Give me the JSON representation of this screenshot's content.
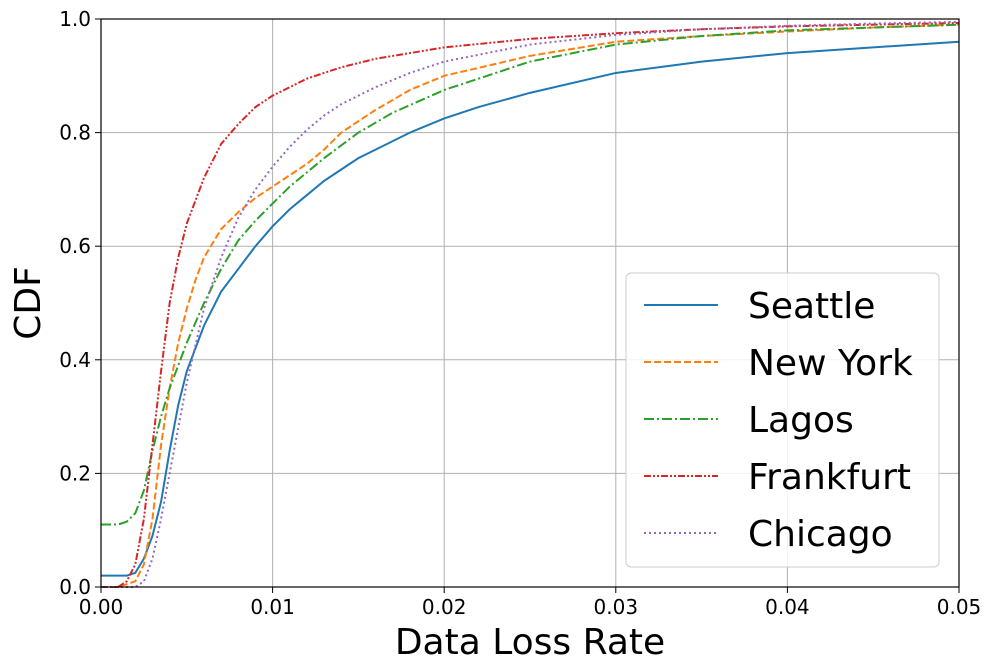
{
  "chart_data": {
    "type": "line",
    "title": "",
    "xlabel": "Data Loss Rate",
    "ylabel": "CDF",
    "xlim": [
      0.0,
      0.05
    ],
    "ylim": [
      0.0,
      1.0
    ],
    "grid": true,
    "legend_position": "lower-right",
    "x_ticks": [
      "0.00",
      "0.01",
      "0.02",
      "0.03",
      "0.04",
      "0.05"
    ],
    "x_tick_values": [
      0.0,
      0.01,
      0.02,
      0.03,
      0.04,
      0.05
    ],
    "y_ticks": [
      "0.0",
      "0.2",
      "0.4",
      "0.6",
      "0.8",
      "1.0"
    ],
    "y_tick_values": [
      0.0,
      0.2,
      0.4,
      0.6,
      0.8,
      1.0
    ],
    "series": [
      {
        "name": "Seattle",
        "color": "#1f77b4",
        "dash": "solid",
        "x": [
          0.0,
          0.0005,
          0.0015,
          0.002,
          0.0025,
          0.003,
          0.0035,
          0.004,
          0.0045,
          0.005,
          0.006,
          0.007,
          0.008,
          0.009,
          0.01,
          0.011,
          0.012,
          0.013,
          0.014,
          0.015,
          0.016,
          0.018,
          0.02,
          0.022,
          0.025,
          0.03,
          0.035,
          0.04,
          0.045,
          0.05
        ],
        "y": [
          0.02,
          0.02,
          0.02,
          0.025,
          0.05,
          0.09,
          0.15,
          0.24,
          0.32,
          0.38,
          0.46,
          0.52,
          0.56,
          0.6,
          0.635,
          0.665,
          0.69,
          0.715,
          0.735,
          0.755,
          0.77,
          0.8,
          0.825,
          0.845,
          0.87,
          0.905,
          0.925,
          0.94,
          0.95,
          0.96
        ]
      },
      {
        "name": "New York",
        "color": "#ff7f0e",
        "dash": "dashed",
        "x": [
          0.0,
          0.001,
          0.002,
          0.0025,
          0.003,
          0.0035,
          0.004,
          0.0045,
          0.005,
          0.0055,
          0.006,
          0.007,
          0.008,
          0.009,
          0.01,
          0.011,
          0.012,
          0.013,
          0.014,
          0.016,
          0.018,
          0.02,
          0.025,
          0.03,
          0.035,
          0.04,
          0.045,
          0.05
        ],
        "y": [
          0.0,
          0.0,
          0.01,
          0.04,
          0.12,
          0.25,
          0.35,
          0.43,
          0.49,
          0.54,
          0.58,
          0.63,
          0.66,
          0.685,
          0.705,
          0.725,
          0.745,
          0.77,
          0.8,
          0.84,
          0.875,
          0.9,
          0.935,
          0.96,
          0.97,
          0.978,
          0.985,
          0.99
        ]
      },
      {
        "name": "Lagos",
        "color": "#2ca02c",
        "dash": "dashdot",
        "x": [
          0.0,
          0.001,
          0.0015,
          0.002,
          0.0025,
          0.003,
          0.0035,
          0.004,
          0.0045,
          0.005,
          0.006,
          0.007,
          0.008,
          0.009,
          0.01,
          0.011,
          0.012,
          0.013,
          0.015,
          0.017,
          0.02,
          0.025,
          0.03,
          0.035,
          0.04,
          0.045,
          0.05
        ],
        "y": [
          0.11,
          0.11,
          0.115,
          0.13,
          0.17,
          0.24,
          0.3,
          0.35,
          0.39,
          0.43,
          0.5,
          0.56,
          0.61,
          0.645,
          0.675,
          0.705,
          0.73,
          0.755,
          0.8,
          0.835,
          0.875,
          0.925,
          0.955,
          0.97,
          0.98,
          0.985,
          0.99
        ]
      },
      {
        "name": "Frankfurt",
        "color": "#d62728",
        "dash": "dashdotdot",
        "x": [
          0.0,
          0.001,
          0.0015,
          0.002,
          0.0025,
          0.003,
          0.0035,
          0.004,
          0.0045,
          0.005,
          0.0055,
          0.006,
          0.007,
          0.008,
          0.009,
          0.01,
          0.011,
          0.012,
          0.014,
          0.016,
          0.02,
          0.025,
          0.03,
          0.035,
          0.04,
          0.045,
          0.05
        ],
        "y": [
          0.0,
          0.0,
          0.01,
          0.04,
          0.12,
          0.25,
          0.38,
          0.5,
          0.58,
          0.64,
          0.68,
          0.72,
          0.78,
          0.815,
          0.845,
          0.865,
          0.88,
          0.895,
          0.915,
          0.93,
          0.95,
          0.965,
          0.975,
          0.982,
          0.987,
          0.99,
          0.993
        ]
      },
      {
        "name": "Chicago",
        "color": "#9467bd",
        "dash": "dotted",
        "x": [
          0.0,
          0.001,
          0.002,
          0.0025,
          0.003,
          0.0035,
          0.004,
          0.0045,
          0.005,
          0.006,
          0.007,
          0.008,
          0.009,
          0.01,
          0.011,
          0.012,
          0.013,
          0.014,
          0.016,
          0.018,
          0.02,
          0.025,
          0.03,
          0.035,
          0.04,
          0.045,
          0.05
        ],
        "y": [
          0.0,
          0.0,
          0.0,
          0.01,
          0.05,
          0.12,
          0.2,
          0.28,
          0.36,
          0.49,
          0.58,
          0.65,
          0.7,
          0.74,
          0.775,
          0.805,
          0.83,
          0.85,
          0.88,
          0.905,
          0.925,
          0.955,
          0.972,
          0.982,
          0.988,
          0.992,
          0.995
        ]
      }
    ]
  }
}
